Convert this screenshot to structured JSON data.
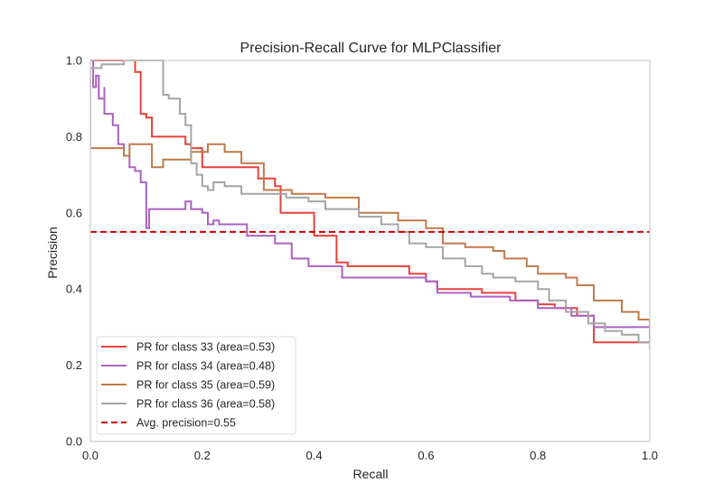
{
  "chart_data": {
    "type": "line",
    "title": "Precision-Recall Curve for MLPClassifier",
    "xlabel": "Recall",
    "ylabel": "Precision",
    "xlim": [
      0.0,
      1.0
    ],
    "ylim": [
      0.0,
      1.0
    ],
    "grid": false,
    "legend_position": "lower-left",
    "xticks": [
      "0.0",
      "0.2",
      "0.4",
      "0.6",
      "0.8",
      "1.0"
    ],
    "yticks": [
      "0.0",
      "0.2",
      "0.4",
      "0.6",
      "0.8",
      "1.0"
    ],
    "series": [
      {
        "name": "PR for class 33 (area=0.53)",
        "color": "#e8403b",
        "points": [
          [
            0.0,
            1.0
          ],
          [
            0.06,
            1.0
          ],
          [
            0.08,
            0.97
          ],
          [
            0.09,
            0.86
          ],
          [
            0.095,
            0.86
          ],
          [
            0.1,
            0.85
          ],
          [
            0.11,
            0.8
          ],
          [
            0.16,
            0.8
          ],
          [
            0.17,
            0.79
          ],
          [
            0.17,
            0.78
          ],
          [
            0.18,
            0.77
          ],
          [
            0.2,
            0.77
          ],
          [
            0.2,
            0.72
          ],
          [
            0.3,
            0.72
          ],
          [
            0.3,
            0.69
          ],
          [
            0.33,
            0.67
          ],
          [
            0.34,
            0.6
          ],
          [
            0.4,
            0.6
          ],
          [
            0.4,
            0.54
          ],
          [
            0.44,
            0.54
          ],
          [
            0.44,
            0.47
          ],
          [
            0.46,
            0.46
          ],
          [
            0.55,
            0.46
          ],
          [
            0.57,
            0.44
          ],
          [
            0.6,
            0.42
          ],
          [
            0.62,
            0.4
          ],
          [
            0.7,
            0.39
          ],
          [
            0.76,
            0.37
          ],
          [
            0.8,
            0.36
          ],
          [
            0.83,
            0.35
          ],
          [
            0.87,
            0.33
          ],
          [
            0.9,
            0.31
          ],
          [
            0.9,
            0.26
          ],
          [
            0.97,
            0.26
          ],
          [
            1.0,
            0.25
          ]
        ]
      },
      {
        "name": "PR for class 34 (area=0.48)",
        "color": "#ab62c0",
        "points": [
          [
            0.0,
            1.0
          ],
          [
            0.005,
            0.93
          ],
          [
            0.01,
            0.96
          ],
          [
            0.015,
            0.9
          ],
          [
            0.025,
            0.93
          ],
          [
            0.025,
            0.86
          ],
          [
            0.04,
            0.83
          ],
          [
            0.05,
            0.78
          ],
          [
            0.06,
            0.75
          ],
          [
            0.07,
            0.72
          ],
          [
            0.08,
            0.71
          ],
          [
            0.09,
            0.68
          ],
          [
            0.1,
            0.65
          ],
          [
            0.1,
            0.56
          ],
          [
            0.105,
            0.61
          ],
          [
            0.15,
            0.61
          ],
          [
            0.17,
            0.63
          ],
          [
            0.18,
            0.61
          ],
          [
            0.2,
            0.6
          ],
          [
            0.21,
            0.57
          ],
          [
            0.22,
            0.58
          ],
          [
            0.23,
            0.57
          ],
          [
            0.28,
            0.56
          ],
          [
            0.28,
            0.54
          ],
          [
            0.33,
            0.52
          ],
          [
            0.36,
            0.48
          ],
          [
            0.39,
            0.46
          ],
          [
            0.45,
            0.45
          ],
          [
            0.45,
            0.43
          ],
          [
            0.53,
            0.43
          ],
          [
            0.6,
            0.42
          ],
          [
            0.62,
            0.39
          ],
          [
            0.68,
            0.38
          ],
          [
            0.75,
            0.37
          ],
          [
            0.8,
            0.35
          ],
          [
            0.86,
            0.33
          ],
          [
            0.9,
            0.3
          ],
          [
            0.95,
            0.3
          ],
          [
            1.0,
            0.29
          ]
        ]
      },
      {
        "name": "PR for class 35 (area=0.59)",
        "color": "#c07a4a",
        "points": [
          [
            0.0,
            0.77
          ],
          [
            0.05,
            0.77
          ],
          [
            0.06,
            0.75
          ],
          [
            0.07,
            0.75
          ],
          [
            0.07,
            0.78
          ],
          [
            0.1,
            0.78
          ],
          [
            0.11,
            0.72
          ],
          [
            0.13,
            0.72
          ],
          [
            0.13,
            0.74
          ],
          [
            0.17,
            0.74
          ],
          [
            0.18,
            0.76
          ],
          [
            0.2,
            0.76
          ],
          [
            0.21,
            0.78
          ],
          [
            0.24,
            0.78
          ],
          [
            0.24,
            0.76
          ],
          [
            0.27,
            0.73
          ],
          [
            0.31,
            0.73
          ],
          [
            0.31,
            0.66
          ],
          [
            0.36,
            0.65
          ],
          [
            0.42,
            0.64
          ],
          [
            0.48,
            0.6
          ],
          [
            0.55,
            0.58
          ],
          [
            0.6,
            0.56
          ],
          [
            0.63,
            0.52
          ],
          [
            0.67,
            0.51
          ],
          [
            0.72,
            0.5
          ],
          [
            0.74,
            0.48
          ],
          [
            0.78,
            0.46
          ],
          [
            0.8,
            0.44
          ],
          [
            0.85,
            0.43
          ],
          [
            0.87,
            0.41
          ],
          [
            0.9,
            0.4
          ],
          [
            0.9,
            0.37
          ],
          [
            0.95,
            0.34
          ],
          [
            0.98,
            0.32
          ],
          [
            1.0,
            0.26
          ]
        ]
      },
      {
        "name": "PR for class 36 (area=0.58)",
        "color": "#a5a5a5",
        "points": [
          [
            0.0,
            0.77
          ],
          [
            0.0,
            0.98
          ],
          [
            0.02,
            0.99
          ],
          [
            0.05,
            0.99
          ],
          [
            0.06,
            1.0
          ],
          [
            0.13,
            1.0
          ],
          [
            0.13,
            0.91
          ],
          [
            0.14,
            0.9
          ],
          [
            0.16,
            0.88
          ],
          [
            0.16,
            0.86
          ],
          [
            0.17,
            0.83
          ],
          [
            0.18,
            0.8
          ],
          [
            0.18,
            0.73
          ],
          [
            0.19,
            0.7
          ],
          [
            0.2,
            0.67
          ],
          [
            0.21,
            0.66
          ],
          [
            0.22,
            0.68
          ],
          [
            0.24,
            0.67
          ],
          [
            0.27,
            0.65
          ],
          [
            0.33,
            0.65
          ],
          [
            0.35,
            0.64
          ],
          [
            0.39,
            0.63
          ],
          [
            0.42,
            0.61
          ],
          [
            0.48,
            0.59
          ],
          [
            0.52,
            0.57
          ],
          [
            0.55,
            0.55
          ],
          [
            0.57,
            0.52
          ],
          [
            0.6,
            0.51
          ],
          [
            0.63,
            0.48
          ],
          [
            0.67,
            0.46
          ],
          [
            0.7,
            0.44
          ],
          [
            0.72,
            0.43
          ],
          [
            0.76,
            0.42
          ],
          [
            0.8,
            0.4
          ],
          [
            0.82,
            0.37
          ],
          [
            0.85,
            0.34
          ],
          [
            0.89,
            0.31
          ],
          [
            0.92,
            0.29
          ],
          [
            0.95,
            0.28
          ],
          [
            0.98,
            0.26
          ],
          [
            1.0,
            0.24
          ]
        ]
      }
    ],
    "avg_precision": {
      "name": "Avg. precision=0.55",
      "value": 0.55,
      "color": "#cc0000"
    }
  }
}
